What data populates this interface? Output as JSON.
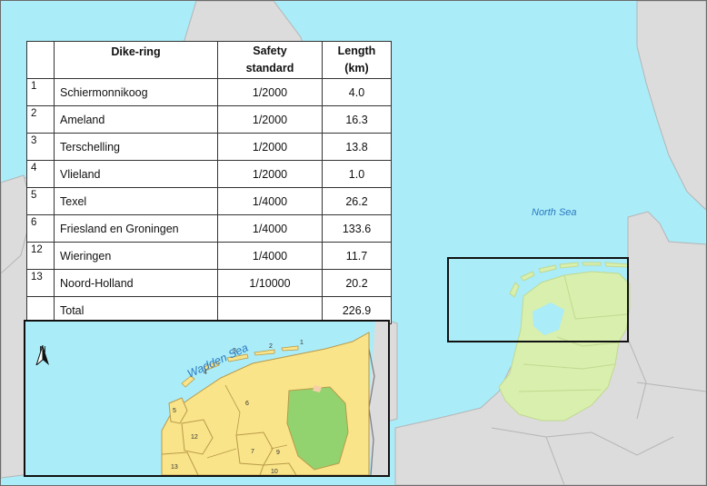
{
  "map": {
    "labels": {
      "sea": "North Sea"
    },
    "colors": {
      "water": "#aaecf8",
      "land": "#dcdcdc",
      "netherlands": "#d8efae",
      "borders": "#b5b5b5"
    }
  },
  "table": {
    "headers": {
      "id": "",
      "name": "Dike-ring",
      "standard": "Safety standard",
      "length": "Length (km)"
    },
    "rows": [
      {
        "id": "1",
        "name": "Schiermonnikoog",
        "standard": "1/2000",
        "length": "4.0"
      },
      {
        "id": "2",
        "name": "Ameland",
        "standard": "1/2000",
        "length": "16.3"
      },
      {
        "id": "3",
        "name": "Terschelling",
        "standard": "1/2000",
        "length": "13.8"
      },
      {
        "id": "4",
        "name": "Vlieland",
        "standard": "1/2000",
        "length": "1.0"
      },
      {
        "id": "5",
        "name": "Texel",
        "standard": "1/4000",
        "length": "26.2"
      },
      {
        "id": "6",
        "name": "Friesland en Groningen",
        "standard": "1/4000",
        "length": "133.6"
      },
      {
        "id": "12",
        "name": "Wieringen",
        "standard": "1/4000",
        "length": "11.7"
      },
      {
        "id": "13",
        "name": "Noord-Holland",
        "standard": "1/10000",
        "length": "20.2"
      }
    ],
    "total": {
      "label": "Total",
      "length": "226.9"
    }
  },
  "inset": {
    "sea_label": "Wadden Sea",
    "north": "N",
    "area_numbers": [
      "1",
      "2",
      "3",
      "4",
      "5",
      "6",
      "7",
      "9",
      "10",
      "12",
      "13"
    ],
    "colors": {
      "dike_area": "#f9e489",
      "inland": "#93d36f",
      "outline": "#b89a4a"
    }
  }
}
